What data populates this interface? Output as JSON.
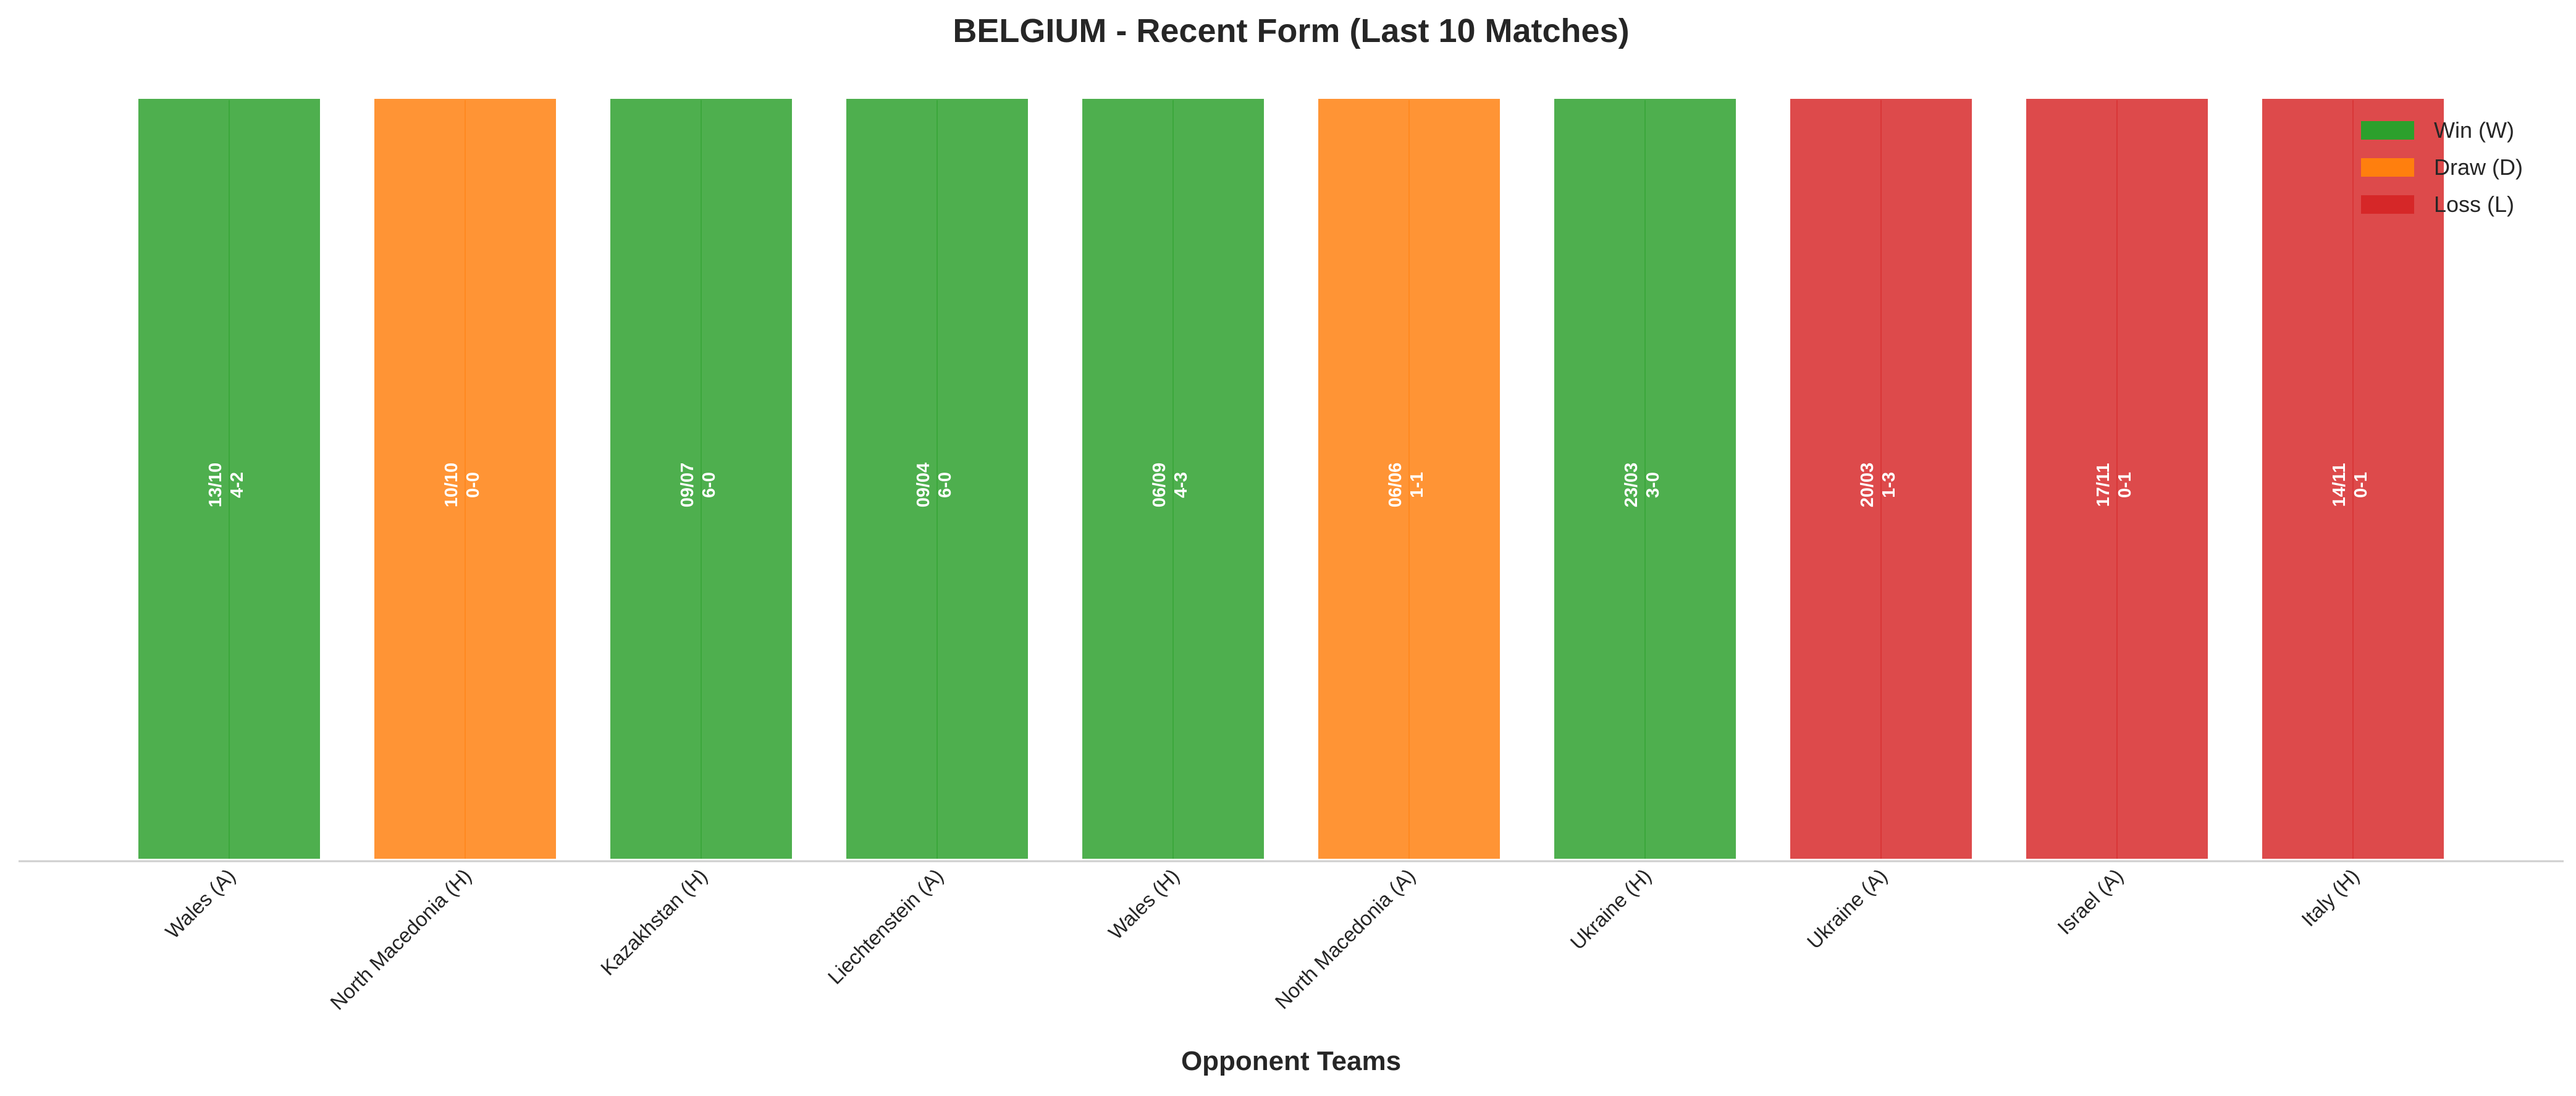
{
  "chart_data": {
    "type": "bar",
    "title": "BELGIUM - Recent Form (Last 10 Matches)",
    "xlabel": "Opponent Teams",
    "ylabel": "",
    "categories": [
      "Wales (A)",
      "North Macedonia (H)",
      "Kazakhstan (H)",
      "Liechtenstein (A)",
      "Wales (H)",
      "North Macedonia (A)",
      "Ukraine (H)",
      "Ukraine (A)",
      "Israel (A)",
      "Italy (H)"
    ],
    "values": [
      1,
      1,
      1,
      1,
      1,
      1,
      1,
      1,
      1,
      1
    ],
    "results": [
      "W",
      "D",
      "W",
      "W",
      "W",
      "D",
      "W",
      "L",
      "L",
      "L"
    ],
    "dates": [
      "13/10",
      "10/10",
      "09/07",
      "09/04",
      "06/09",
      "06/06",
      "23/03",
      "20/03",
      "17/11",
      "14/11"
    ],
    "scores": [
      "4-2",
      "0-0",
      "6-0",
      "6-0",
      "4-3",
      "1-1",
      "3-0",
      "1-3",
      "0-1",
      "0-1"
    ],
    "colors": {
      "W": "#2ca02c",
      "D": "#ff7f0e",
      "L": "#d62728"
    },
    "legend": {
      "position": "top-right",
      "items": [
        {
          "key": "W",
          "label": "Win (W)"
        },
        {
          "key": "D",
          "label": "Draw (D)"
        },
        {
          "key": "L",
          "label": "Loss (L)"
        }
      ]
    },
    "ylim": [
      0,
      1
    ],
    "grid": false
  }
}
